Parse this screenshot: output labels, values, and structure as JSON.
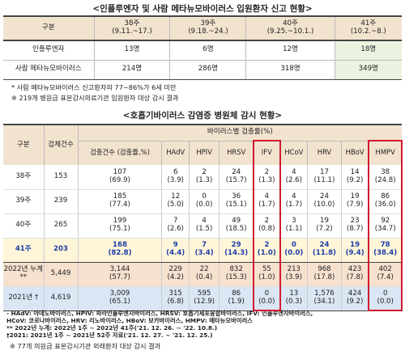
{
  "title1": "<인플루엔자 및 사람 메타뉴모바이러스 입원환자 신고 현황>",
  "table1": {
    "header_label": "구분",
    "columns": [
      {
        "week": "38주",
        "range": "(9.11.~17.)"
      },
      {
        "week": "39주",
        "range": "(9.18.~24.)"
      },
      {
        "week": "40주",
        "range": "(9.25.~10.1.)"
      },
      {
        "week": "41주",
        "range": "(10.2.~8.)"
      }
    ],
    "rows": [
      {
        "label": "인플루엔자",
        "values": [
          "13명",
          "6명",
          "12명",
          "18명"
        ]
      },
      {
        "label": "사람 메타뉴모바이러스",
        "values": [
          "214명",
          "286명",
          "318명",
          "349명"
        ]
      }
    ]
  },
  "notes1": [
    "* 사람 메타뉴모바이러스 신고환자의 77~86%가 6세 미만",
    "※ 219개 병원급 표본감시의료기관 입원환자 대상 감시 결과"
  ],
  "title2": "<호흡기바이러스 감염증 병원체 감시 현황>",
  "table2": {
    "col_group": "구분",
    "col_samples": "검체건수",
    "virus_group": "바이러스별 검출률(%)",
    "sub_cols": [
      "검출건수 (검출률,%)",
      "HAdV",
      "HPIV",
      "HRSV",
      "IFV",
      "HCoV",
      "HRV",
      "HBoV",
      "HMPV"
    ],
    "rows": [
      {
        "label": "38주",
        "samples": "153",
        "cells": [
          [
            "107",
            "(69.9)"
          ],
          [
            "6",
            "(3.9)"
          ],
          [
            "2",
            "(1.3)"
          ],
          [
            "24",
            "(15.7)"
          ],
          [
            "2",
            "(1.3)"
          ],
          [
            "4",
            "(2.6)"
          ],
          [
            "17",
            "(11.1)"
          ],
          [
            "14",
            "(9.2)"
          ],
          [
            "38",
            "(24.8)"
          ]
        ]
      },
      {
        "label": "39주",
        "samples": "239",
        "cells": [
          [
            "185",
            "(77.4)"
          ],
          [
            "12",
            "(5.0)"
          ],
          [
            "0",
            "(0.0)"
          ],
          [
            "36",
            "(15.1)"
          ],
          [
            "4",
            "(1.7)"
          ],
          [
            "4",
            "(1.7)"
          ],
          [
            "24",
            "(10.0)"
          ],
          [
            "19",
            "(7.9)"
          ],
          [
            "86",
            "(36.0)"
          ]
        ]
      },
      {
        "label": "40주",
        "samples": "265",
        "cells": [
          [
            "199",
            "(75.1)"
          ],
          [
            "7",
            "(2.6)"
          ],
          [
            "4",
            "(1.5)"
          ],
          [
            "49",
            "(18.5)"
          ],
          [
            "2",
            "(0.8)"
          ],
          [
            "3",
            "(1.1)"
          ],
          [
            "19",
            "(7.2)"
          ],
          [
            "23",
            "(8.7)"
          ],
          [
            "92",
            "(34.7)"
          ]
        ]
      },
      {
        "label": "41주",
        "samples": "203",
        "cells": [
          [
            "168",
            "(82.8)"
          ],
          [
            "9",
            "(4.4)"
          ],
          [
            "7",
            "(3.4)"
          ],
          [
            "29",
            "(14.3)"
          ],
          [
            "2",
            "(1.0)"
          ],
          [
            "0",
            "(0.0)"
          ],
          [
            "24",
            "(11.8)"
          ],
          [
            "19",
            "(9.4)"
          ],
          [
            "78",
            "(38.4)"
          ]
        ]
      },
      {
        "label": "2022년 누계**",
        "samples": "5,449",
        "cells": [
          [
            "3,144",
            "(57.7)"
          ],
          [
            "229",
            "(4.2)"
          ],
          [
            "22",
            "(0.4)"
          ],
          [
            "832",
            "(15.3)"
          ],
          [
            "55",
            "(1.0)"
          ],
          [
            "213",
            "(3.9)"
          ],
          [
            "968",
            "(17.8)"
          ],
          [
            "423",
            "(7.8)"
          ],
          [
            "402",
            "(7.4)"
          ]
        ]
      },
      {
        "label": "2021년 †",
        "samples": "4,619",
        "cells": [
          [
            "3,009",
            "(65.1)"
          ],
          [
            "315",
            "(6.8)"
          ],
          [
            "595",
            "(12.9)"
          ],
          [
            "86",
            "(1.9)"
          ],
          [
            "0",
            "(0.0)"
          ],
          [
            "13",
            "(0.3)"
          ],
          [
            "1,576",
            "(34.1)"
          ],
          [
            "424",
            "(9.2)"
          ],
          [
            "0",
            "(0.0)"
          ]
        ]
      }
    ]
  },
  "notes2": [
    "- HAdV: 아데노바이러스, HPIV: 파라인플루엔자바이러스, HRSV: 호흡기세포융합바이러스, IFV: 인플루엔자바이러스,",
    "  HCoV: 코로나바이러스, HRV: 리노바이러스, HBoV: 보카바이러스, HMPV: 메타뉴모바이러스",
    "** 2022년 누계: 2022년 1주 ~ 2022년 41주('21. 12. 26. ~ '22. 10.8.)",
    "†2021: 2021년 1주 ~ 2021년 52주 자료('21. 12. 27. ~ '21. 12. 25.)"
  ],
  "note3": "※ 77개 의원급 표본감시기관 외래환자 대상 감시 결과",
  "colors": {
    "header_bg": "#f2e3cf",
    "highlight_green": "#eaf3df",
    "week41_text": "#1f3da8",
    "week41_bg": "#fff6d9",
    "red_box": "#d1192f"
  }
}
